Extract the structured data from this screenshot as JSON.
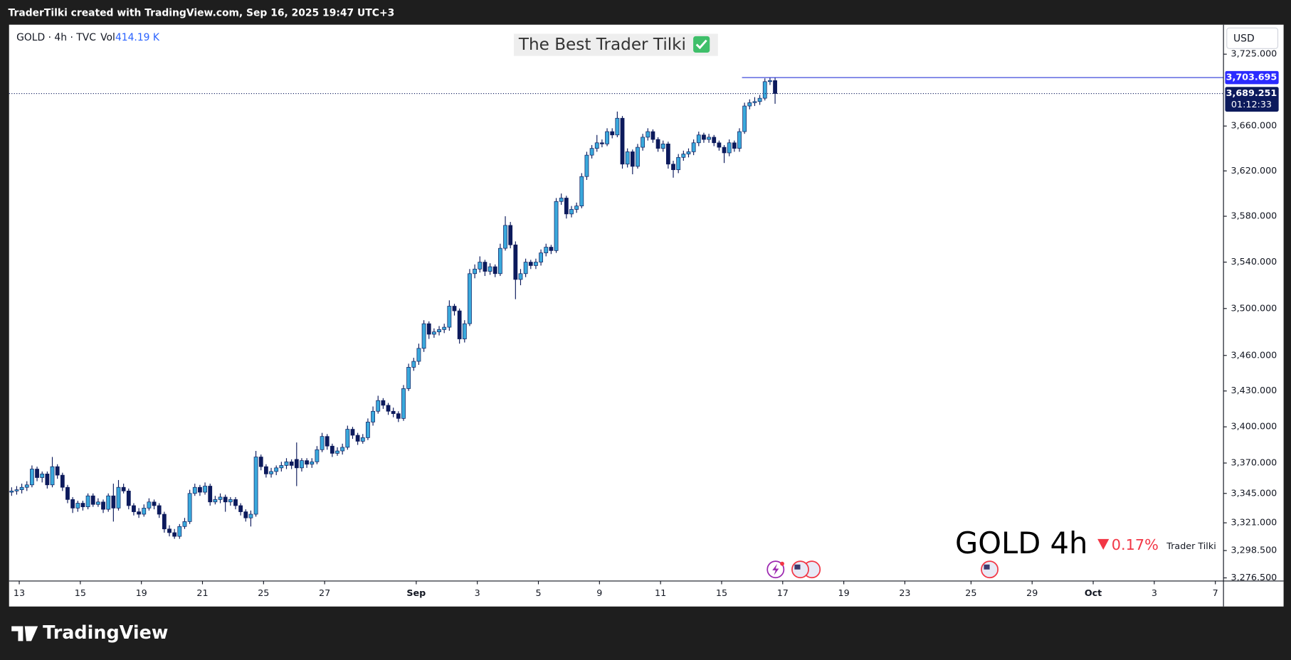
{
  "header": "TraderTilki created with TradingView.com, Sep 16, 2025 19:47 UTC+3",
  "footer_brand": "TradingView",
  "chart_data": {
    "type": "candlestick",
    "title": "The Best Trader Tilki",
    "symbol_info": "GOLD · 4h · TVC",
    "volume_label": "Vol",
    "volume_value": "414.19 K",
    "currency": "USD",
    "watermark": "GOLD 4h",
    "change_label": "0.17%",
    "author": "Trader Tilki",
    "log": true,
    "grid": false,
    "up_color": "#3aa9dc",
    "down_color": "#0c1a5c",
    "xlim": [
      0,
      238.6
    ],
    "xticks": [
      {
        "value": 2,
        "label": "13"
      },
      {
        "value": 14,
        "label": "15"
      },
      {
        "value": 26,
        "label": "19"
      },
      {
        "value": 38,
        "label": "21"
      },
      {
        "value": 50,
        "label": "25"
      },
      {
        "value": 62,
        "label": "27"
      },
      {
        "value": 80,
        "label": "Sep"
      },
      {
        "value": 92,
        "label": "3"
      },
      {
        "value": 104,
        "label": "5"
      },
      {
        "value": 116,
        "label": "9"
      },
      {
        "value": 128,
        "label": "11"
      },
      {
        "value": 140,
        "label": "15"
      },
      {
        "value": 152,
        "label": "17"
      },
      {
        "value": 164,
        "label": "19"
      },
      {
        "value": 176,
        "label": "23"
      },
      {
        "value": 189,
        "label": "25"
      },
      {
        "value": 201,
        "label": "29"
      },
      {
        "value": 213,
        "label": "Oct"
      },
      {
        "value": 225,
        "label": "3"
      },
      {
        "value": 237,
        "label": "7"
      }
    ],
    "ylim": [
      3274,
      3752
    ],
    "yticks": [
      {
        "value": 3725,
        "label": "3,725.000"
      },
      {
        "value": 3660,
        "label": "3,660.000"
      },
      {
        "value": 3620,
        "label": "3,620.000"
      },
      {
        "value": 3580,
        "label": "3,580.000"
      },
      {
        "value": 3540,
        "label": "3,540.000"
      },
      {
        "value": 3500,
        "label": "3,500.000"
      },
      {
        "value": 3460,
        "label": "3,460.000"
      },
      {
        "value": 3430,
        "label": "3,430.000"
      },
      {
        "value": 3400,
        "label": "3,400.000"
      },
      {
        "value": 3370,
        "label": "3,370.000"
      },
      {
        "value": 3345,
        "label": "3,345.000"
      },
      {
        "value": 3321,
        "label": "3,321.000"
      },
      {
        "value": 3298.5,
        "label": "3,298.500"
      },
      {
        "value": 3276.5,
        "label": "3,276.500"
      }
    ],
    "high_line": {
      "value": 3703.695,
      "label": "3,703.695"
    },
    "last_price": {
      "value": 3689.251,
      "label": "3,689.251"
    },
    "countdown": "01:12:33",
    "open": [
      3346,
      3347,
      3348,
      3350,
      3352,
      3365,
      3358,
      3361,
      3352,
      3367,
      3360,
      3350,
      3340,
      3333,
      3337,
      3334,
      3343,
      3336,
      3338,
      3332,
      3343,
      3333,
      3350,
      3347,
      3335,
      3330,
      3328,
      3333,
      3338,
      3335,
      3328,
      3316,
      3313,
      3310,
      3318,
      3322,
      3345,
      3350,
      3346,
      3351,
      3338,
      3340,
      3342,
      3338,
      3340,
      3335,
      3330,
      3325,
      3328,
      3375,
      3367,
      3361,
      3363,
      3366,
      3368,
      3371,
      3373,
      3366,
      3372,
      3369,
      3371,
      3381,
      3392,
      3384,
      3378,
      3380,
      3383,
      3398,
      3393,
      3388,
      3391,
      3404,
      3413,
      3422,
      3418,
      3413,
      3411,
      3407,
      3432,
      3450,
      3455,
      3466,
      3487,
      3478,
      3480,
      3482,
      3484,
      3502,
      3498,
      3474,
      3487,
      3530,
      3534,
      3540,
      3532,
      3536,
      3530,
      3552,
      3572,
      3555,
      3525,
      3530,
      3540,
      3537,
      3540,
      3548,
      3553,
      3550,
      3593,
      3596,
      3582,
      3586,
      3589,
      3615,
      3634,
      3640,
      3645,
      3644,
      3655,
      3652,
      3667,
      3626,
      3637,
      3624,
      3641,
      3650,
      3655,
      3648,
      3640,
      3644,
      3626,
      3621,
      3632,
      3635,
      3637,
      3645,
      3652,
      3648,
      3650,
      3645,
      3641,
      3636,
      3645,
      3640,
      3655,
      3678,
      3681,
      3682,
      3685,
      3700,
      3701
    ],
    "high": [
      3350,
      3351,
      3353,
      3355,
      3368,
      3367,
      3363,
      3363,
      3375,
      3369,
      3362,
      3352,
      3342,
      3339,
      3339,
      3345,
      3345,
      3341,
      3340,
      3345,
      3353,
      3356,
      3353,
      3349,
      3337,
      3333,
      3336,
      3341,
      3340,
      3337,
      3330,
      3319,
      3316,
      3320,
      3325,
      3348,
      3353,
      3352,
      3354,
      3353,
      3343,
      3345,
      3344,
      3342,
      3342,
      3337,
      3332,
      3331,
      3380,
      3377,
      3369,
      3366,
      3368,
      3371,
      3374,
      3373,
      3387,
      3374,
      3374,
      3374,
      3384,
      3395,
      3394,
      3386,
      3383,
      3386,
      3401,
      3400,
      3395,
      3394,
      3407,
      3417,
      3426,
      3424,
      3420,
      3416,
      3413,
      3435,
      3453,
      3458,
      3470,
      3490,
      3489,
      3483,
      3485,
      3487,
      3507,
      3504,
      3500,
      3490,
      3534,
      3538,
      3545,
      3542,
      3539,
      3538,
      3556,
      3580,
      3575,
      3558,
      3534,
      3543,
      3542,
      3543,
      3551,
      3556,
      3555,
      3596,
      3600,
      3598,
      3589,
      3592,
      3618,
      3637,
      3643,
      3652,
      3648,
      3658,
      3658,
      3673,
      3669,
      3640,
      3639,
      3644,
      3653,
      3658,
      3657,
      3650,
      3647,
      3646,
      3629,
      3635,
      3638,
      3640,
      3648,
      3655,
      3654,
      3653,
      3652,
      3647,
      3643,
      3648,
      3647,
      3658,
      3681,
      3684,
      3686,
      3688,
      3703,
      3703.695,
      3703.695
    ],
    "low": [
      3343,
      3344,
      3345,
      3347,
      3350,
      3355,
      3354,
      3349,
      3350,
      3357,
      3347,
      3337,
      3329,
      3330,
      3331,
      3332,
      3334,
      3334,
      3329,
      3330,
      3322,
      3331,
      3345,
      3332,
      3327,
      3325,
      3326,
      3331,
      3332,
      3325,
      3313,
      3310,
      3308,
      3308,
      3316,
      3320,
      3343,
      3343,
      3344,
      3335,
      3336,
      3337,
      3330,
      3335,
      3332,
      3327,
      3322,
      3318,
      3326,
      3364,
      3358,
      3358,
      3360,
      3363,
      3365,
      3365,
      3351,
      3363,
      3366,
      3366,
      3369,
      3379,
      3381,
      3375,
      3376,
      3377,
      3381,
      3390,
      3385,
      3386,
      3389,
      3401,
      3411,
      3415,
      3410,
      3408,
      3404,
      3405,
      3430,
      3447,
      3452,
      3463,
      3474,
      3475,
      3477,
      3479,
      3481,
      3494,
      3470,
      3471,
      3485,
      3526,
      3531,
      3528,
      3529,
      3527,
      3528,
      3550,
      3552,
      3508,
      3520,
      3527,
      3534,
      3534,
      3537,
      3545,
      3547,
      3548,
      3590,
      3578,
      3579,
      3583,
      3587,
      3612,
      3631,
      3637,
      3641,
      3642,
      3649,
      3650,
      3622,
      3623,
      3617,
      3622,
      3638,
      3647,
      3645,
      3637,
      3637,
      3622,
      3614,
      3618,
      3629,
      3632,
      3634,
      3642,
      3645,
      3645,
      3642,
      3638,
      3627,
      3633,
      3637,
      3637,
      3653,
      3675,
      3678,
      3679,
      3683,
      3697,
      3680
    ],
    "close": [
      3347,
      3348,
      3350,
      3352,
      3365,
      3358,
      3361,
      3352,
      3367,
      3360,
      3350,
      3340,
      3333,
      3337,
      3334,
      3343,
      3336,
      3338,
      3332,
      3343,
      3333,
      3350,
      3347,
      3335,
      3330,
      3328,
      3333,
      3338,
      3335,
      3328,
      3316,
      3313,
      3310,
      3318,
      3322,
      3345,
      3350,
      3346,
      3351,
      3338,
      3340,
      3342,
      3338,
      3340,
      3335,
      3330,
      3325,
      3328,
      3375,
      3367,
      3361,
      3363,
      3366,
      3368,
      3371,
      3368,
      3366,
      3372,
      3369,
      3371,
      3381,
      3392,
      3384,
      3378,
      3380,
      3383,
      3398,
      3393,
      3388,
      3391,
      3404,
      3413,
      3422,
      3418,
      3413,
      3411,
      3407,
      3432,
      3450,
      3455,
      3466,
      3487,
      3478,
      3480,
      3482,
      3484,
      3502,
      3498,
      3474,
      3487,
      3530,
      3534,
      3540,
      3532,
      3536,
      3530,
      3552,
      3572,
      3555,
      3525,
      3530,
      3540,
      3537,
      3540,
      3548,
      3553,
      3550,
      3593,
      3596,
      3582,
      3586,
      3589,
      3615,
      3634,
      3640,
      3645,
      3644,
      3655,
      3652,
      3667,
      3626,
      3637,
      3624,
      3641,
      3650,
      3655,
      3648,
      3640,
      3644,
      3626,
      3621,
      3632,
      3635,
      3637,
      3645,
      3652,
      3648,
      3650,
      3645,
      3641,
      3636,
      3645,
      3640,
      3655,
      3678,
      3681,
      3682,
      3685,
      3700,
      3701,
      3689.251
    ]
  }
}
